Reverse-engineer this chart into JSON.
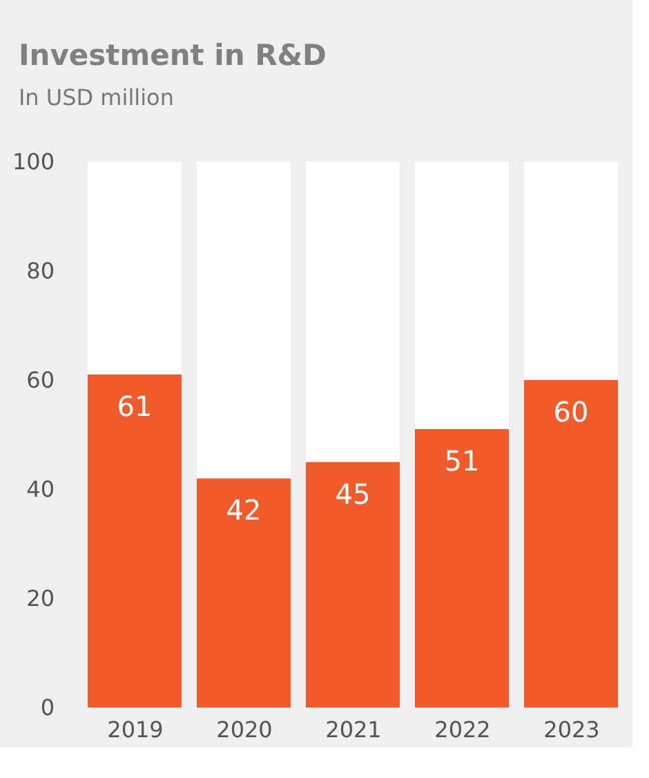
{
  "chart_data": {
    "type": "bar",
    "title": "Investment in R&D",
    "subtitle": "In USD million",
    "categories": [
      "2019",
      "2020",
      "2021",
      "2022",
      "2023"
    ],
    "stacked": true,
    "series": [
      {
        "color": "#f15a2b",
        "values": [
          61,
          42,
          45,
          51,
          60
        ],
        "value_labels": [
          "61",
          "42",
          "45",
          "51",
          "60"
        ]
      },
      {
        "color": "#ffffff",
        "values": [
          39,
          58,
          55,
          49,
          40
        ]
      }
    ],
    "ylim": [
      0,
      100
    ],
    "yticks": [
      0,
      20,
      40,
      60,
      80,
      100
    ],
    "grid": false
  }
}
